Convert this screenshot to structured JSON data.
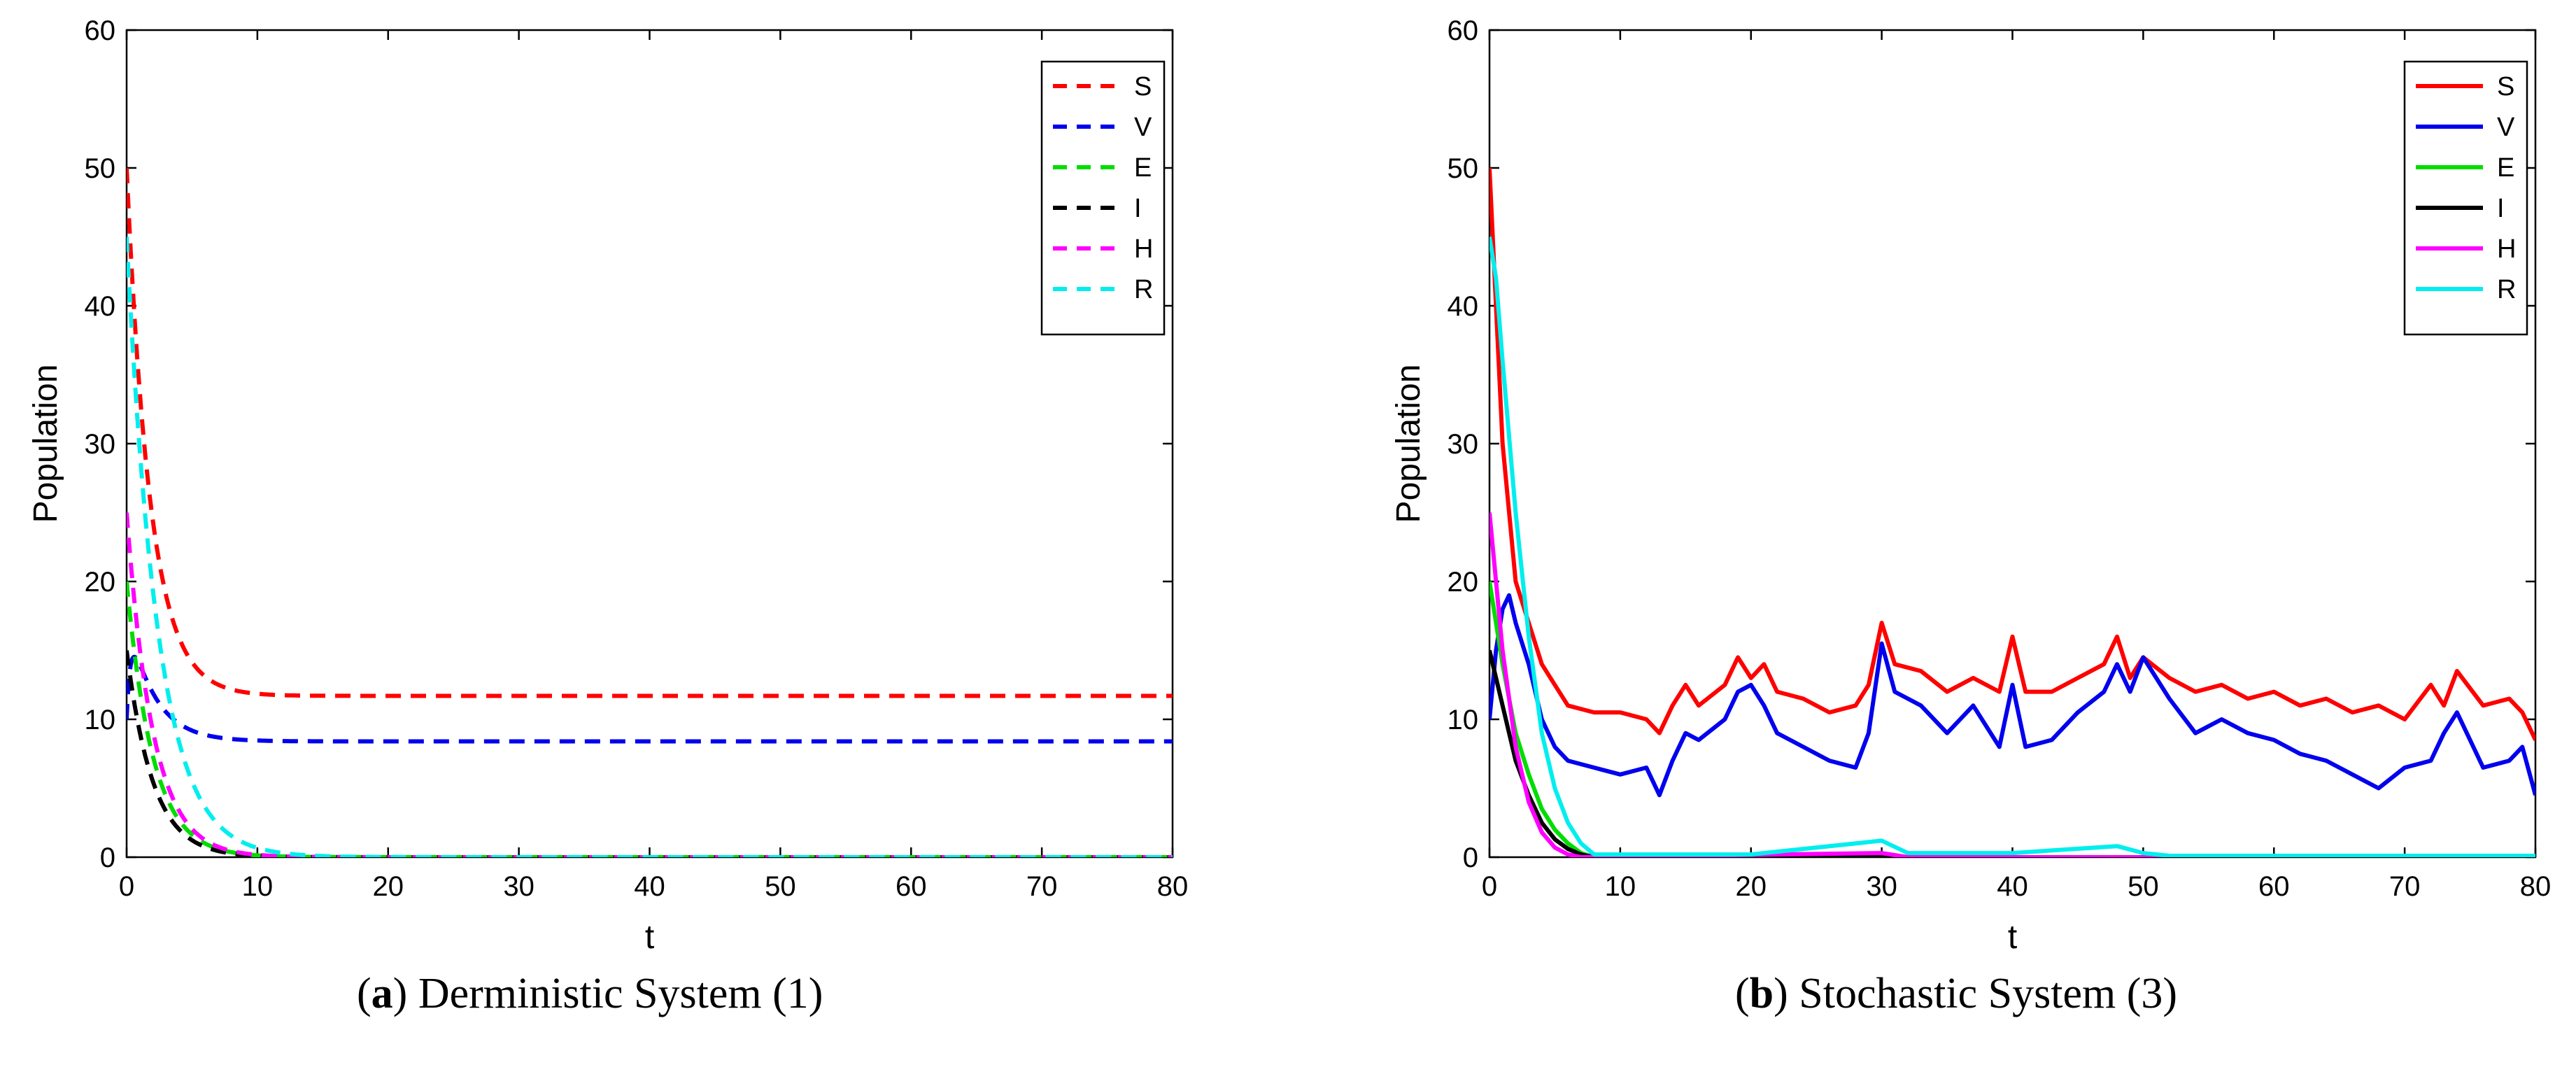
{
  "captions": [
    {
      "tag": "a",
      "text": "Derministic System (1)"
    },
    {
      "tag": "b",
      "text": "Stochastic System (3)"
    }
  ],
  "colors": {
    "S": "#ff0000",
    "V": "#0000ee",
    "E": "#00dd00",
    "I": "#000000",
    "H": "#ff00ff",
    "R": "#00eeee"
  },
  "chart_data": [
    {
      "type": "line",
      "panel": "a",
      "line_style": "dashed",
      "xlabel": "t",
      "ylabel": "Population",
      "xlim": [
        0,
        80
      ],
      "ylim": [
        0,
        60
      ],
      "xticks": [
        0,
        10,
        20,
        30,
        40,
        50,
        60,
        70,
        80
      ],
      "yticks": [
        0,
        10,
        20,
        30,
        40,
        50,
        60
      ],
      "legend_position": "top-right",
      "series": [
        {
          "name": "S",
          "initial": 50,
          "final": 11.7,
          "decay_rate": 0.55
        },
        {
          "name": "V",
          "initial": 10,
          "peak": 18,
          "final": 8.4,
          "decay_rate": 0.5
        },
        {
          "name": "E",
          "initial": 20,
          "final": 0,
          "decay_rate": 0.5
        },
        {
          "name": "I",
          "initial": 15,
          "final": 0,
          "decay_rate": 0.5
        },
        {
          "name": "H",
          "initial": 25,
          "final": 0,
          "decay_rate": 0.5
        },
        {
          "name": "R",
          "initial": 45,
          "peak": 45,
          "final": 0,
          "decay_rate": 0.42
        }
      ]
    },
    {
      "type": "line",
      "panel": "b",
      "line_style": "solid",
      "xlabel": "t",
      "ylabel": "Population",
      "xlim": [
        0,
        80
      ],
      "ylim": [
        0,
        60
      ],
      "xticks": [
        0,
        10,
        20,
        30,
        40,
        50,
        60,
        70,
        80
      ],
      "yticks": [
        0,
        10,
        20,
        30,
        40,
        50,
        60
      ],
      "legend_position": "top-right",
      "series": [
        {
          "name": "S",
          "x": [
            0,
            0.5,
            1,
            2,
            3,
            4,
            5,
            6,
            8,
            10,
            12,
            13,
            14,
            15,
            16,
            18,
            19,
            20,
            21,
            22,
            24,
            26,
            28,
            29,
            30,
            31,
            33,
            35,
            37,
            39,
            40,
            41,
            43,
            45,
            47,
            48,
            49,
            50,
            52,
            54,
            56,
            58,
            60,
            62,
            64,
            66,
            68,
            70,
            72,
            73,
            74,
            76,
            78,
            79,
            80
          ],
          "values": [
            50,
            40,
            30,
            20,
            17,
            14,
            12.5,
            11,
            10.5,
            10.5,
            10,
            9,
            11,
            12.5,
            11,
            12.5,
            14.5,
            13,
            14,
            12,
            11.5,
            10.5,
            11,
            12.5,
            17,
            14,
            13.5,
            12,
            13,
            12,
            16,
            12,
            12,
            13,
            14,
            16,
            13,
            14.5,
            13,
            12,
            12.5,
            11.5,
            12,
            11,
            11.5,
            10.5,
            11,
            10,
            12.5,
            11,
            13.5,
            11,
            11.5,
            10.5,
            8.5
          ]
        },
        {
          "name": "V",
          "x": [
            0,
            0.5,
            1,
            1.5,
            2,
            3,
            4,
            5,
            6,
            8,
            10,
            12,
            13,
            14,
            15,
            16,
            18,
            19,
            20,
            21,
            22,
            24,
            26,
            28,
            29,
            30,
            31,
            33,
            35,
            37,
            39,
            40,
            41,
            43,
            45,
            47,
            48,
            49,
            50,
            52,
            54,
            56,
            58,
            60,
            62,
            64,
            66,
            68,
            70,
            72,
            73,
            74,
            76,
            78,
            79,
            80
          ],
          "values": [
            10,
            15,
            18,
            19,
            17,
            14,
            10,
            8,
            7,
            6.5,
            6,
            6.5,
            4.5,
            7,
            9,
            8.5,
            10,
            12,
            12.5,
            11,
            9,
            8,
            7,
            6.5,
            9,
            15.5,
            12,
            11,
            9,
            11,
            8,
            12.5,
            8,
            8.5,
            10.5,
            12,
            14,
            12,
            14.5,
            11.5,
            9,
            10,
            9,
            8.5,
            7.5,
            7,
            6,
            5,
            6.5,
            7,
            9,
            10.5,
            6.5,
            7,
            8,
            4.5
          ]
        },
        {
          "name": "E",
          "x": [
            0,
            1,
            2,
            3,
            4,
            5,
            6,
            7,
            8,
            80
          ],
          "values": [
            20,
            14,
            9,
            6,
            3.5,
            2,
            1,
            0.3,
            0,
            0
          ]
        },
        {
          "name": "I",
          "x": [
            0,
            1,
            2,
            3,
            4,
            5,
            6,
            7,
            8,
            80
          ],
          "values": [
            15,
            11,
            7,
            4.5,
            2.5,
            1.3,
            0.6,
            0.2,
            0,
            0
          ]
        },
        {
          "name": "H",
          "x": [
            0,
            1,
            2,
            3,
            4,
            5,
            6,
            7,
            30,
            32,
            80
          ],
          "values": [
            25,
            15,
            8,
            4,
            1.8,
            0.7,
            0.2,
            0,
            0.3,
            0,
            0
          ]
        },
        {
          "name": "R",
          "x": [
            0,
            0.5,
            1,
            2,
            3,
            4,
            5,
            6,
            7,
            8,
            20,
            30,
            32,
            40,
            48,
            50,
            52,
            80
          ],
          "values": [
            45,
            42,
            36,
            25,
            16,
            9,
            5,
            2.5,
            1,
            0.2,
            0.2,
            1.2,
            0.3,
            0.3,
            0.8,
            0.3,
            0.1,
            0.1
          ]
        }
      ]
    }
  ]
}
